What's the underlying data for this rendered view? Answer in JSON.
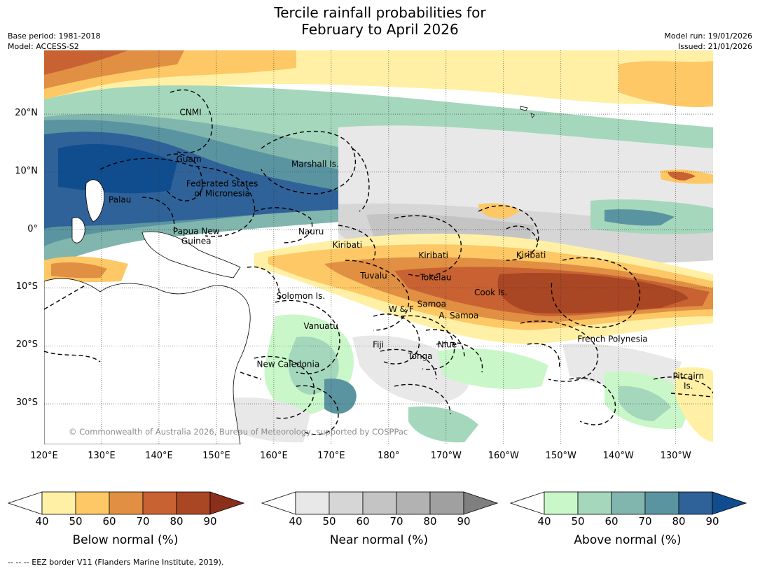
{
  "title": {
    "line1": "Tercile rainfall probabilities for",
    "line2": "February to April 2026"
  },
  "meta": {
    "base_period": "Base period: 1981-2018",
    "model": "Model: ACCESS-S2",
    "model_run": "Model run: 19/01/2026",
    "issued": "Issued: 21/01/2026"
  },
  "axes": {
    "lat_ticks": [
      {
        "value": 20,
        "label": "20°N"
      },
      {
        "value": 10,
        "label": "10°N"
      },
      {
        "value": 0,
        "label": "0°"
      },
      {
        "value": -10,
        "label": "10°S"
      },
      {
        "value": -20,
        "label": "20°S"
      },
      {
        "value": -30,
        "label": "30°S"
      }
    ],
    "lon_ticks": [
      {
        "value": 120,
        "label": "120°E"
      },
      {
        "value": 130,
        "label": "130°E"
      },
      {
        "value": 140,
        "label": "140°E"
      },
      {
        "value": 150,
        "label": "150°E"
      },
      {
        "value": 160,
        "label": "160°E"
      },
      {
        "value": 170,
        "label": "170°E"
      },
      {
        "value": 180,
        "label": "180°"
      },
      {
        "value": 190,
        "label": "170°W"
      },
      {
        "value": 200,
        "label": "160°W"
      },
      {
        "value": 210,
        "label": "150°W"
      },
      {
        "value": 220,
        "label": "140°W"
      },
      {
        "value": 230,
        "label": "130°W"
      }
    ],
    "lon_range": [
      120,
      236.5
    ],
    "lat_range": [
      -37,
      31
    ]
  },
  "places": [
    {
      "name": "CNMI",
      "lon": 145.5,
      "lat": 20.3
    },
    {
      "name": "Guam",
      "lon": 145.2,
      "lat": 12.2
    },
    {
      "name": "Marshall Is.",
      "lon": 167.2,
      "lat": 11.4
    },
    {
      "name": "Federated States",
      "lon": 151.0,
      "lat": 8.0
    },
    {
      "name": "of Micronesia",
      "lon": 151.0,
      "lat": 6.3
    },
    {
      "name": "Palau",
      "lon": 133.2,
      "lat": 5.2
    },
    {
      "name": "Papua New",
      "lon": 146.5,
      "lat": -0.2
    },
    {
      "name": "Guinea",
      "lon": 146.5,
      "lat": -1.9
    },
    {
      "name": "Nauru",
      "lon": 166.5,
      "lat": -0.3
    },
    {
      "name": "Kiribati",
      "lon": 172.8,
      "lat": -2.6
    },
    {
      "name": "Kiribati",
      "lon": 187.8,
      "lat": -4.4
    },
    {
      "name": "Kiribati",
      "lon": 204.8,
      "lat": -4.3
    },
    {
      "name": "Tuvalu",
      "lon": 177.4,
      "lat": -7.9
    },
    {
      "name": "Tokelau",
      "lon": 188.2,
      "lat": -8.2
    },
    {
      "name": "Cook Is.",
      "lon": 197.8,
      "lat": -10.8
    },
    {
      "name": "Solomon Is.",
      "lon": 164.7,
      "lat": -11.4
    },
    {
      "name": "Samoa",
      "lon": 187.5,
      "lat": -12.8
    },
    {
      "name": "W & F",
      "lon": 182.2,
      "lat": -13.7
    },
    {
      "name": "A. Samoa",
      "lon": 192.2,
      "lat": -14.8
    },
    {
      "name": "Vanuatu",
      "lon": 168.2,
      "lat": -16.6
    },
    {
      "name": "Fiji",
      "lon": 178.2,
      "lat": -19.8
    },
    {
      "name": "Niue",
      "lon": 190.2,
      "lat": -19.8
    },
    {
      "name": "French Polynesia",
      "lon": 219.0,
      "lat": -18.8
    },
    {
      "name": "Tonga",
      "lon": 185.5,
      "lat": -21.8
    },
    {
      "name": "New Caledonia",
      "lon": 162.5,
      "lat": -23.2
    },
    {
      "name": "Pitcairn",
      "lon": 232.2,
      "lat": -25.2
    },
    {
      "name": "Is.",
      "lon": 232.2,
      "lat": -26.9
    }
  ],
  "copyright": "© Commonwealth of Australia 2026, Bureau of Meteorology, supported by COSPPac",
  "colorbars": [
    {
      "label": "Below normal (%)",
      "ticks": [
        "40",
        "50",
        "60",
        "70",
        "80",
        "90"
      ],
      "colors": [
        "#ffffff",
        "#fff0a5",
        "#fdc865",
        "#e08f43",
        "#c96232",
        "#a94624",
        "#8b2f1a"
      ]
    },
    {
      "label": "Near normal (%)",
      "ticks": [
        "40",
        "50",
        "60",
        "70",
        "80",
        "90"
      ],
      "colors": [
        "#ffffff",
        "#e8e8e8",
        "#d6d6d6",
        "#c4c4c4",
        "#b2b2b2",
        "#a0a0a0",
        "#7f7f7f"
      ]
    },
    {
      "label": "Above normal (%)",
      "ticks": [
        "40",
        "50",
        "60",
        "70",
        "80",
        "90"
      ],
      "colors": [
        "#ffffff",
        "#c9f7c9",
        "#a4d7bc",
        "#81b6ae",
        "#5b94a1",
        "#2f6298",
        "#104d8f"
      ]
    }
  ],
  "footnote": "--  --  -- EEZ border V11 (Flanders Marine Institute, 2019)."
}
